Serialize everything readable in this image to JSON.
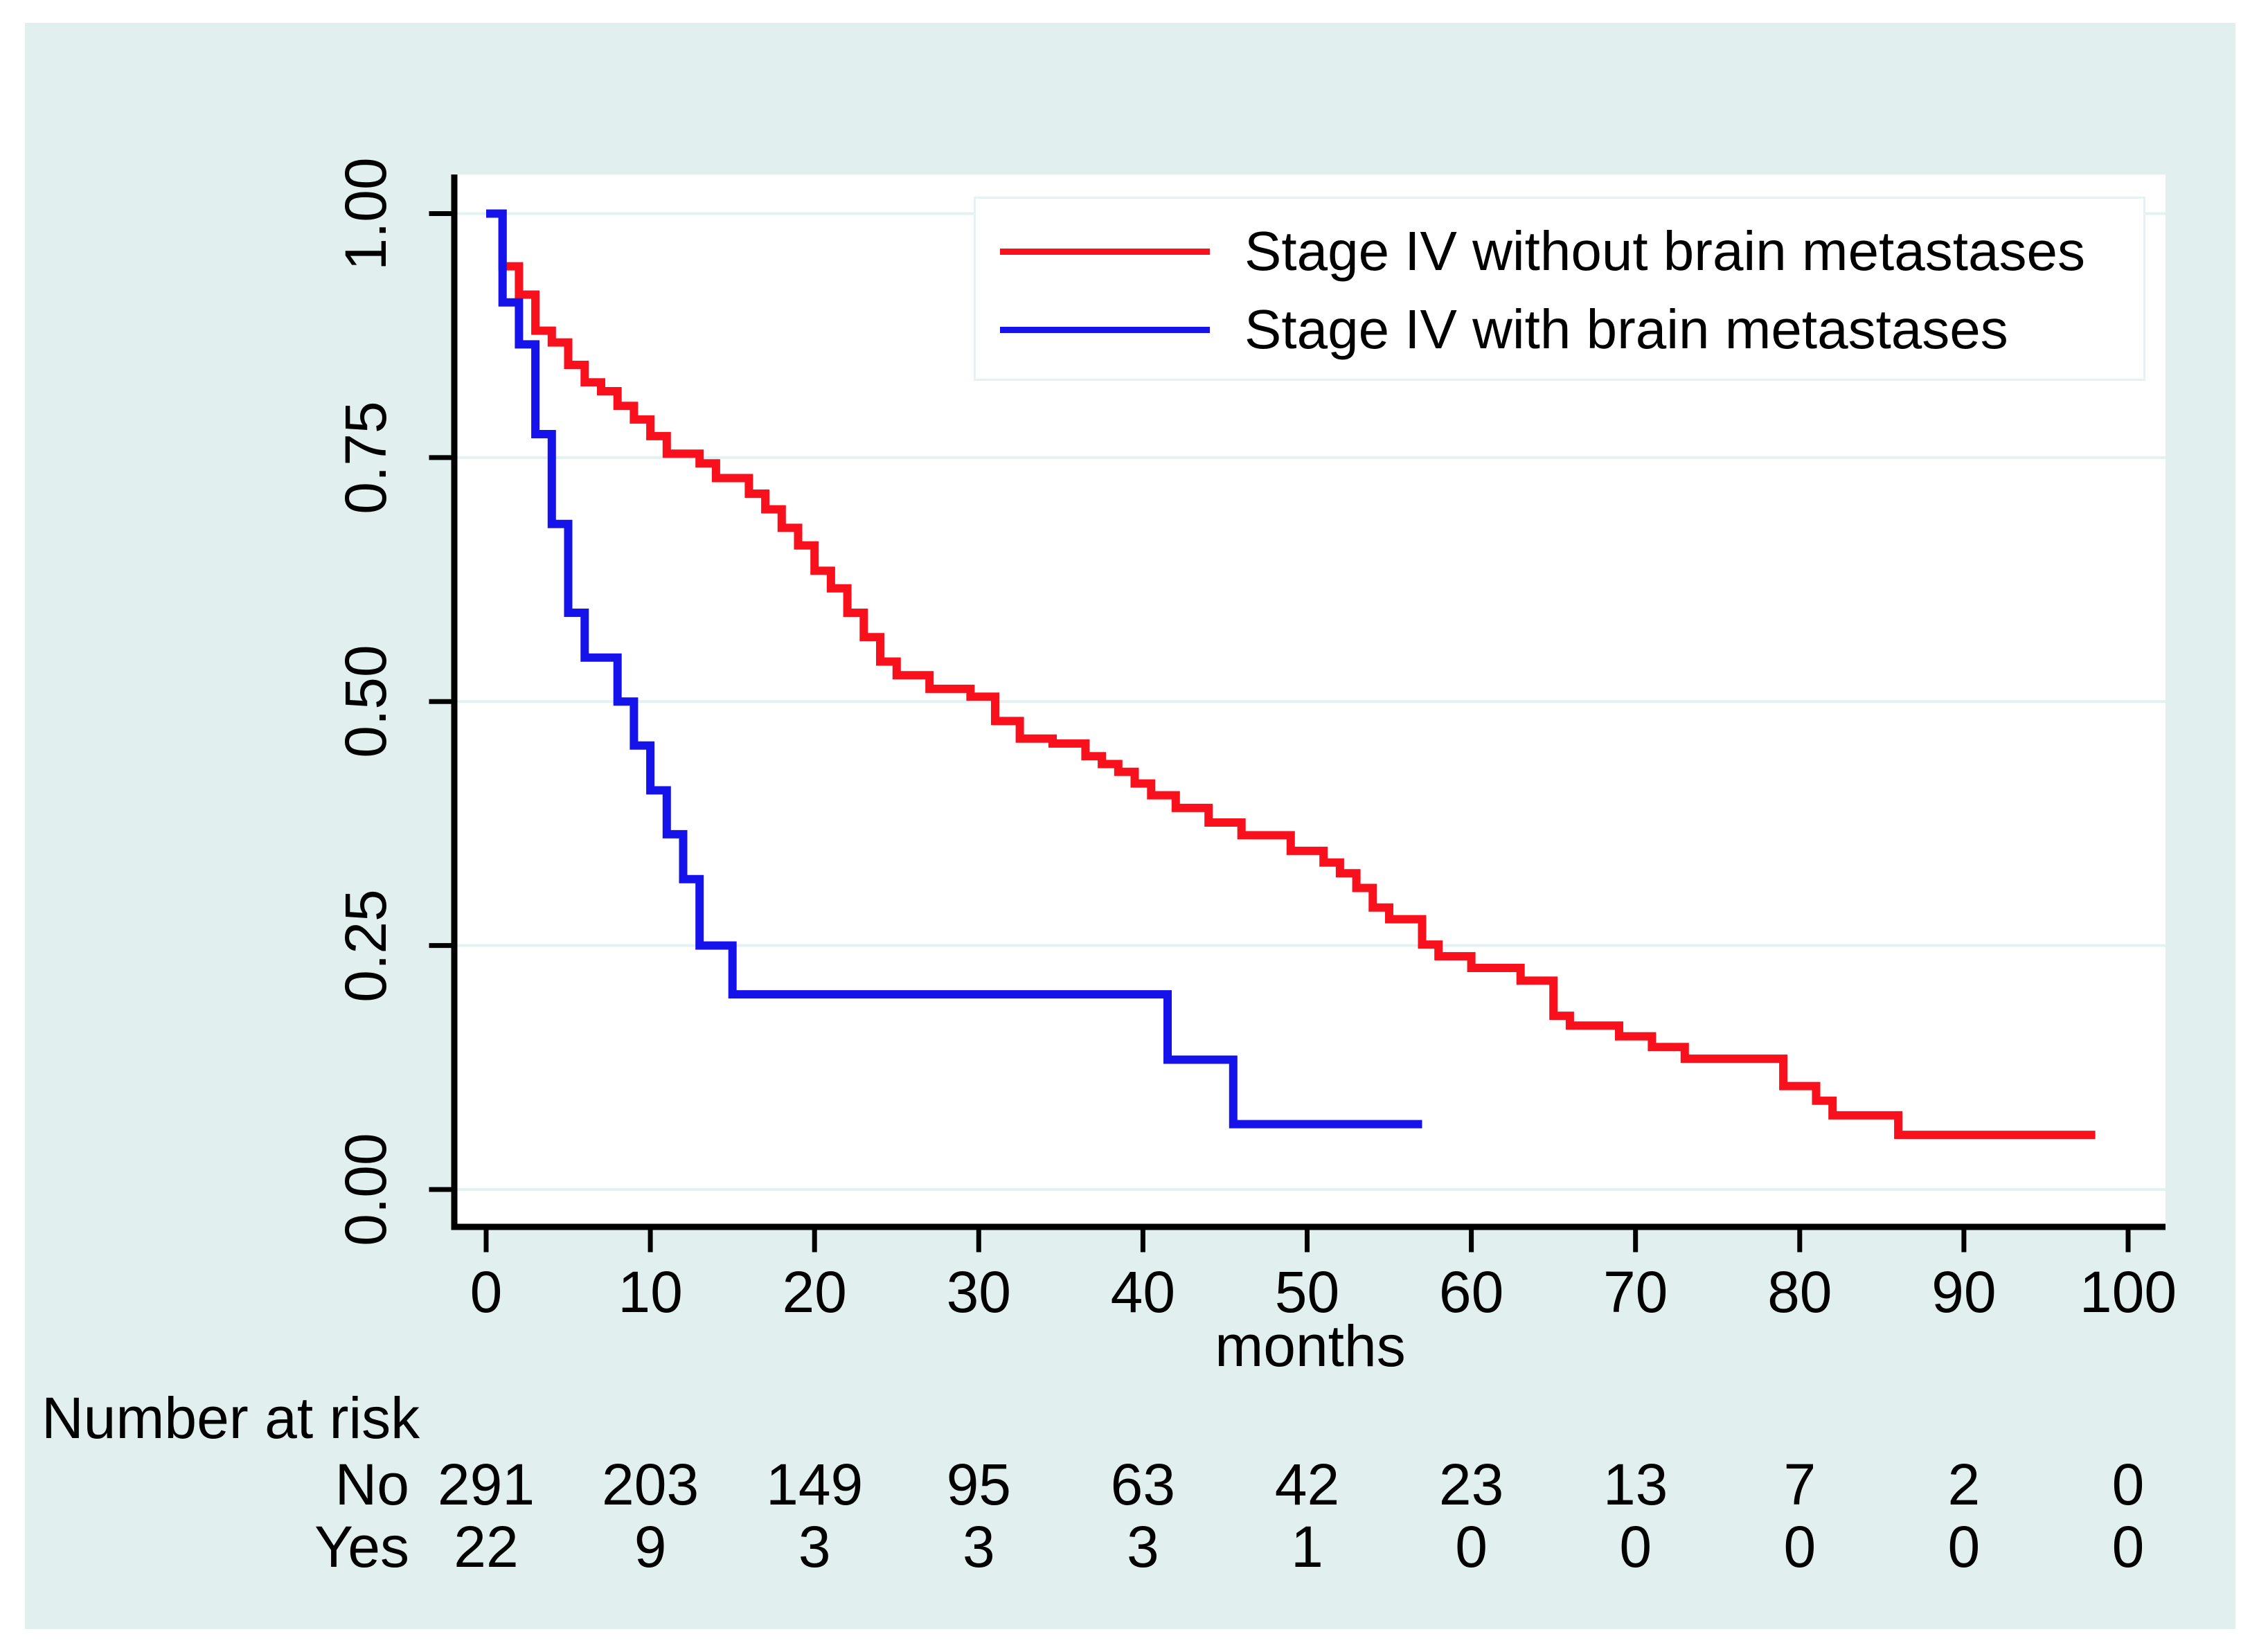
{
  "figure": {
    "background_color": "#ffffff",
    "panel_color": "#e1efef",
    "plot_background": "#ffffff",
    "grid_color": "#e3f1f3",
    "axis_color": "#000000",
    "legend_border_color": "#e6f1f3",
    "text_color": "#000000"
  },
  "chart_data": {
    "type": "line",
    "subtype": "kaplan_meier_step_survival",
    "title": "",
    "xlabel": "months",
    "ylabel": "",
    "xlim": [
      0,
      100
    ],
    "ylim": [
      0,
      1
    ],
    "x_ticks": [
      0,
      10,
      20,
      30,
      40,
      50,
      60,
      70,
      80,
      90,
      100
    ],
    "y_ticks": [
      {
        "label": "0.00",
        "value": 0
      },
      {
        "label": "0.25",
        "value": 0.25
      },
      {
        "label": "0.50",
        "value": 0.5
      },
      {
        "label": "0.75",
        "value": 0.75
      },
      {
        "label": "1.00",
        "value": 1
      }
    ],
    "grid": "horizontal",
    "legend_position": "top-right",
    "series": [
      {
        "name": "Stage IV without brain metastases",
        "color": "#f8101d",
        "end_time": 98,
        "steps": [
          [
            0,
            1.0
          ],
          [
            1,
            0.946
          ],
          [
            2,
            0.917
          ],
          [
            3,
            0.88
          ],
          [
            4,
            0.868
          ],
          [
            5,
            0.845
          ],
          [
            6,
            0.827
          ],
          [
            7,
            0.818
          ],
          [
            8,
            0.803
          ],
          [
            9,
            0.789
          ],
          [
            10,
            0.772
          ],
          [
            11,
            0.754
          ],
          [
            13,
            0.744
          ],
          [
            14,
            0.729
          ],
          [
            16,
            0.713
          ],
          [
            17,
            0.697
          ],
          [
            18,
            0.678
          ],
          [
            19,
            0.66
          ],
          [
            20,
            0.634
          ],
          [
            21,
            0.616
          ],
          [
            22,
            0.591
          ],
          [
            23,
            0.566
          ],
          [
            24,
            0.541
          ],
          [
            25,
            0.527
          ],
          [
            27,
            0.513
          ],
          [
            29.5,
            0.505
          ],
          [
            31,
            0.48
          ],
          [
            32.5,
            0.462
          ],
          [
            34.5,
            0.457
          ],
          [
            36.5,
            0.444
          ],
          [
            37.5,
            0.436
          ],
          [
            38.5,
            0.428
          ],
          [
            39.5,
            0.416
          ],
          [
            40.5,
            0.404
          ],
          [
            42,
            0.391
          ],
          [
            44,
            0.376
          ],
          [
            46,
            0.363
          ],
          [
            49,
            0.347
          ],
          [
            51,
            0.335
          ],
          [
            52,
            0.324
          ],
          [
            53,
            0.309
          ],
          [
            54,
            0.289
          ],
          [
            55,
            0.277
          ],
          [
            57,
            0.251
          ],
          [
            58,
            0.239
          ],
          [
            60,
            0.227
          ],
          [
            63,
            0.214
          ],
          [
            65,
            0.178
          ],
          [
            66,
            0.168
          ],
          [
            69,
            0.157
          ],
          [
            71,
            0.146
          ],
          [
            73,
            0.134
          ],
          [
            79,
            0.106
          ],
          [
            81,
            0.091
          ],
          [
            82,
            0.076
          ],
          [
            86,
            0.056
          ]
        ]
      },
      {
        "name": "Stage IV with brain metastases",
        "color": "#1613ea",
        "end_time": 57,
        "steps": [
          [
            0,
            1.0
          ],
          [
            1,
            0.909
          ],
          [
            2,
            0.866
          ],
          [
            3,
            0.774
          ],
          [
            4,
            0.682
          ],
          [
            5,
            0.591
          ],
          [
            6,
            0.545
          ],
          [
            8,
            0.5
          ],
          [
            9,
            0.455
          ],
          [
            10,
            0.409
          ],
          [
            11,
            0.364
          ],
          [
            12,
            0.318
          ],
          [
            13,
            0.25
          ],
          [
            15,
            0.2
          ],
          [
            41.5,
            0.133
          ],
          [
            45.5,
            0.067
          ]
        ]
      }
    ],
    "risk_table": {
      "title": "Number at risk",
      "times": [
        0,
        10,
        20,
        30,
        40,
        50,
        60,
        70,
        80,
        90,
        100
      ],
      "rows": [
        {
          "label": "No",
          "counts": [
            291,
            203,
            149,
            95,
            63,
            42,
            23,
            13,
            7,
            2,
            0
          ]
        },
        {
          "label": "Yes",
          "counts": [
            22,
            9,
            3,
            3,
            3,
            1,
            0,
            0,
            0,
            0,
            0
          ]
        }
      ]
    }
  }
}
